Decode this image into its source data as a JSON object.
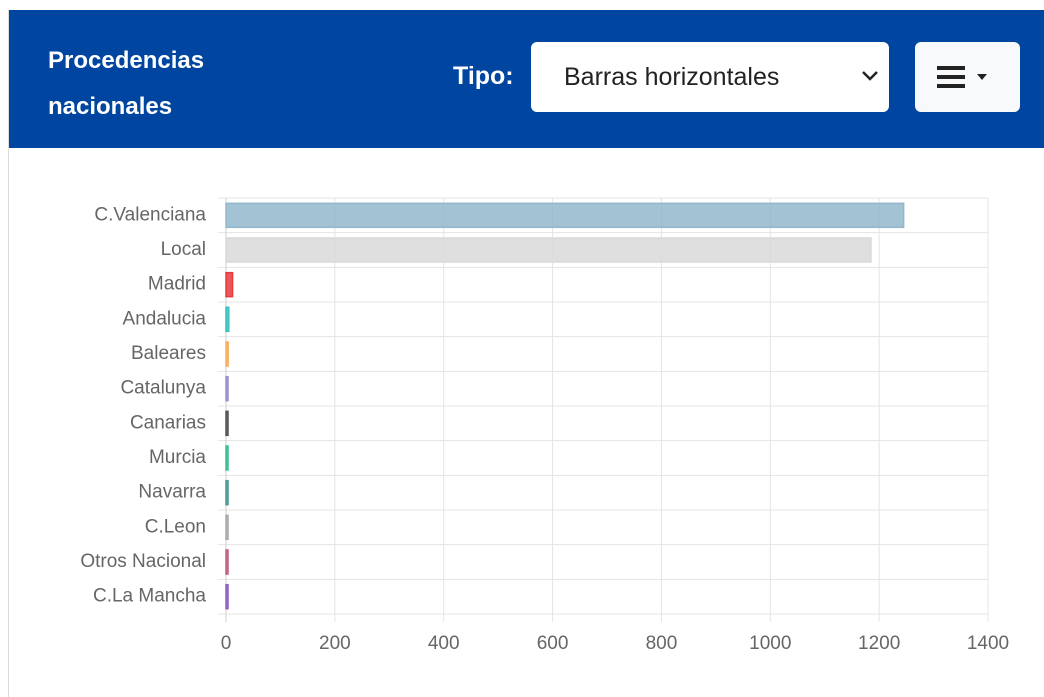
{
  "header": {
    "title": "Procedencias nacionales",
    "tipo_label": "Tipo:",
    "select_value": "Barras horizontales"
  },
  "chart_data": {
    "type": "hbar",
    "categories": [
      "C.Valenciana",
      "Local",
      "Madrid",
      "Andalucia",
      "Baleares",
      "Catalunya",
      "Canarias",
      "Murcia",
      "Navarra",
      "C.Leon",
      "Otros Nacional",
      "C.La Mancha"
    ],
    "values": [
      1245,
      1185,
      12,
      5,
      4,
      2,
      2,
      1,
      1,
      1,
      1,
      1
    ],
    "colors": [
      "#93b7cc",
      "#d9d9d9",
      "#e8383d",
      "#3bbfbf",
      "#f5b060",
      "#9b8fd0",
      "#555555",
      "#3bbf8f",
      "#4a9a9a",
      "#aaaaaa",
      "#c06080",
      "#9060c0"
    ],
    "xlim": [
      0,
      1400
    ],
    "xticks": [
      0,
      200,
      400,
      600,
      800,
      1000,
      1200,
      1400
    ],
    "grid": true
  }
}
